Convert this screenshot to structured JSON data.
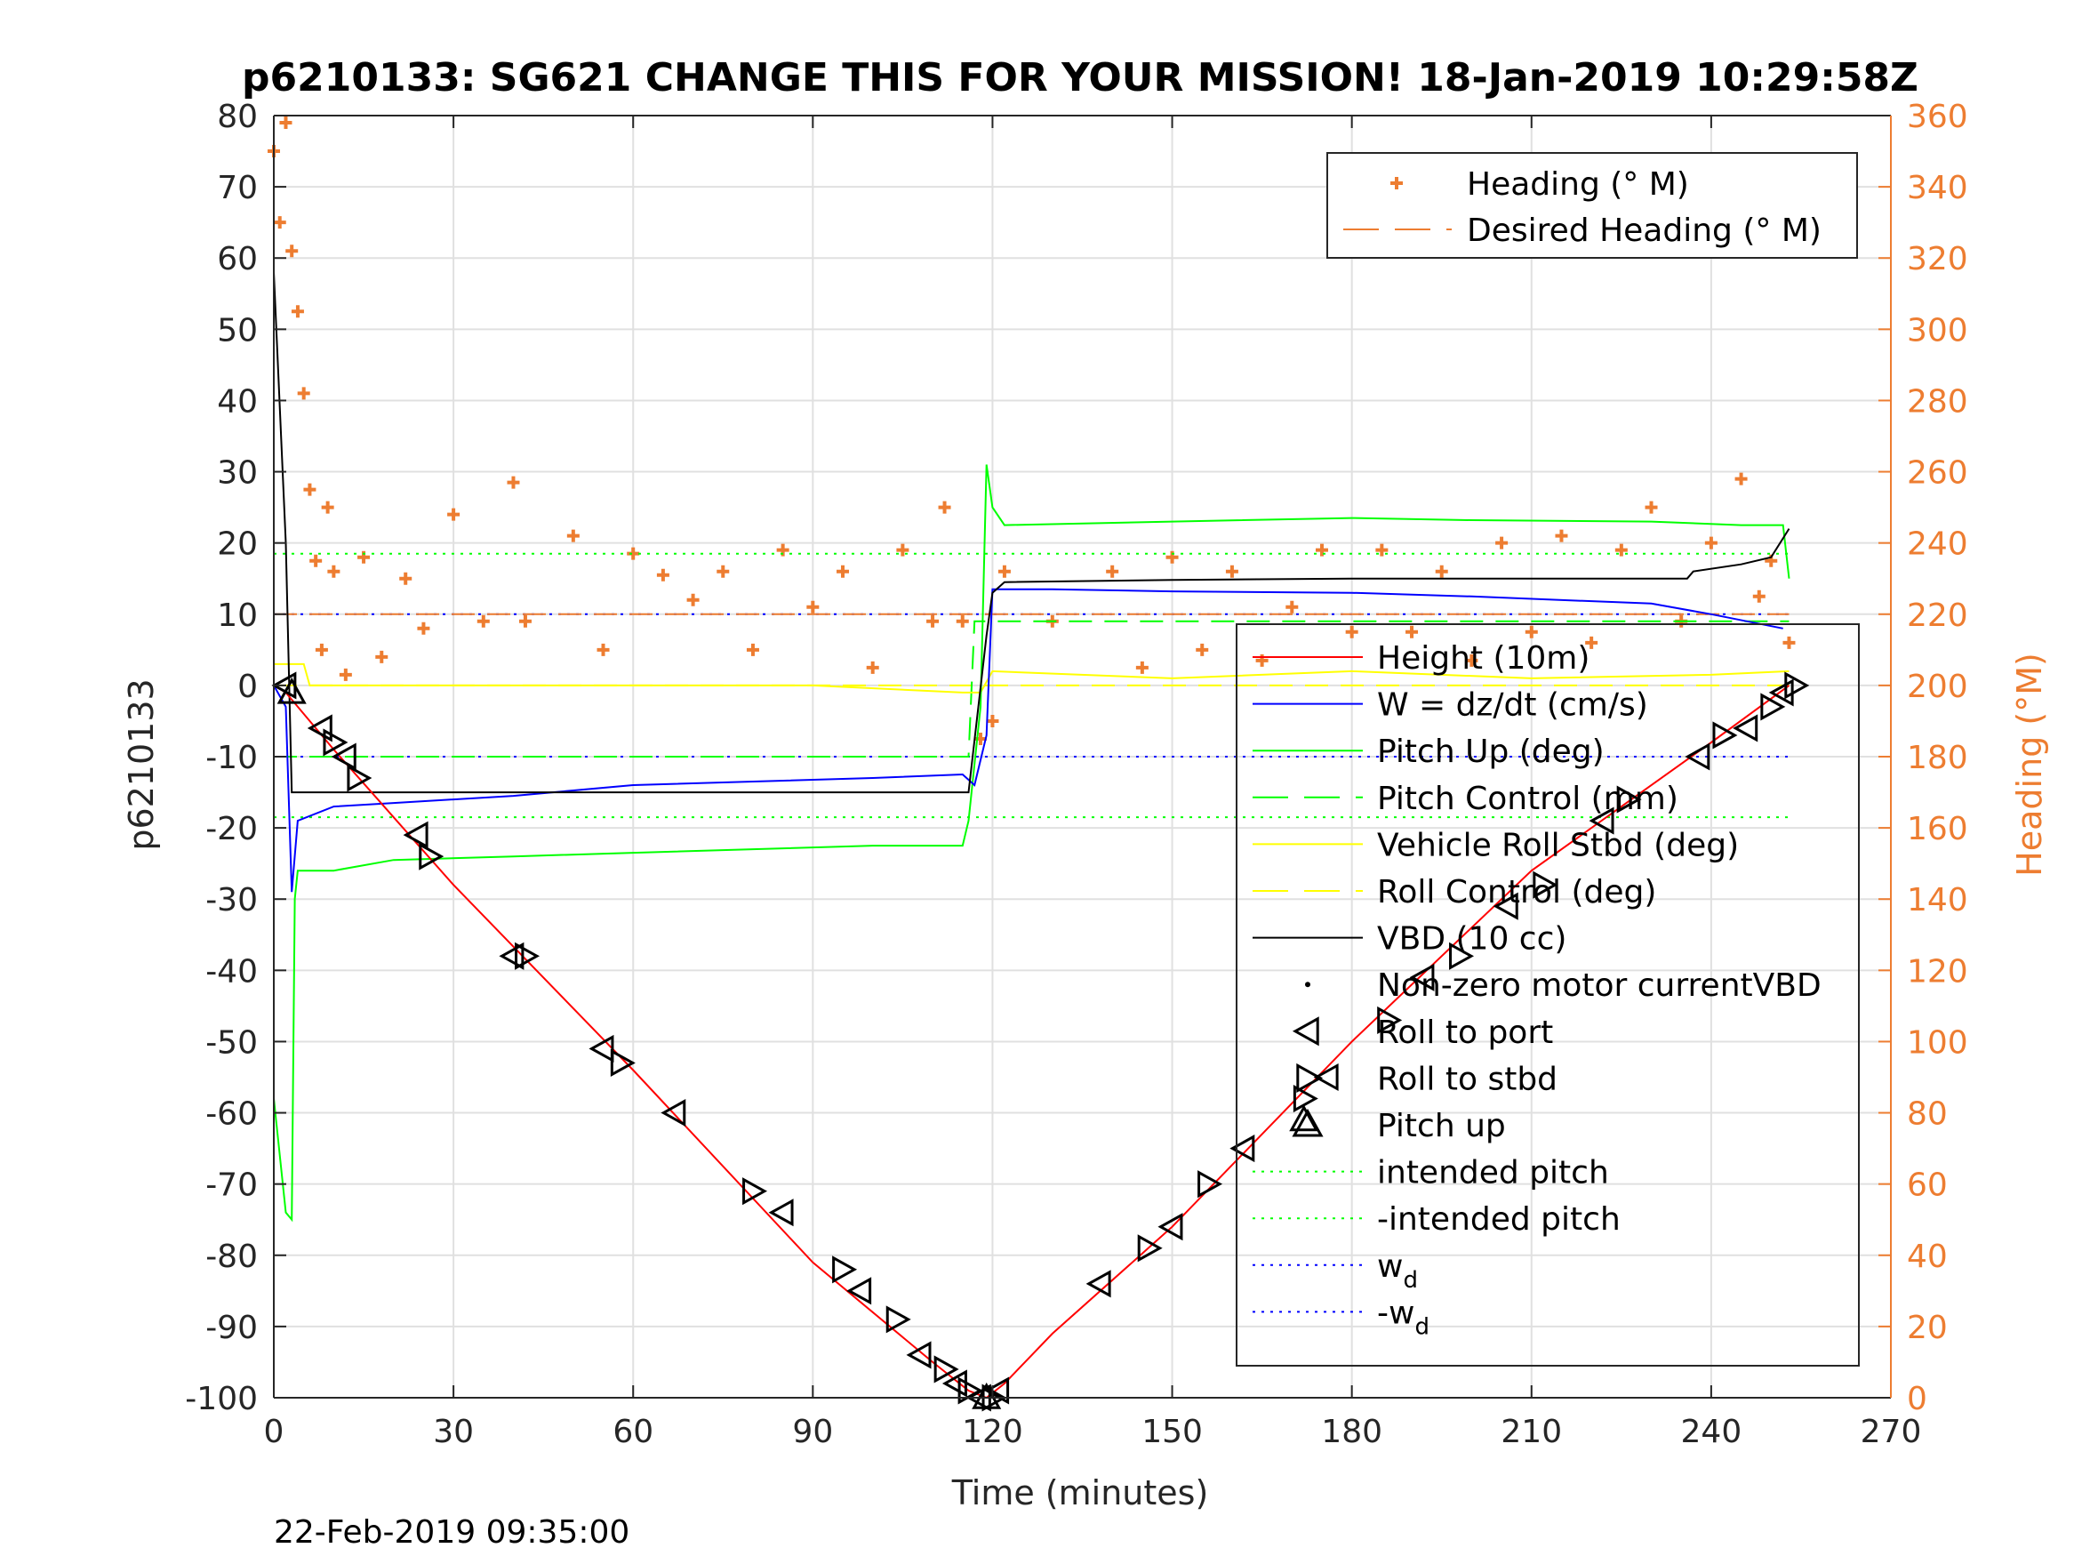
{
  "chart_data": {
    "type": "line",
    "title": "p6210133: SG621 CHANGE THIS FOR YOUR MISSION! 18-Jan-2019 10:29:58Z",
    "xlabel": "Time (minutes)",
    "ylabel": "p6210133",
    "y2label": "Heading (°M)",
    "timestamp": "22-Feb-2019 09:35:00",
    "xlim": [
      0,
      270
    ],
    "ylim": [
      -100,
      80
    ],
    "y2lim": [
      0,
      360
    ],
    "xticks": [
      "0",
      "30",
      "60",
      "90",
      "120",
      "150",
      "180",
      "210",
      "240",
      "270"
    ],
    "yticks": [
      "80",
      "70",
      "60",
      "50",
      "40",
      "30",
      "20",
      "10",
      "0",
      "-10",
      "-20",
      "-30",
      "-40",
      "-50",
      "-60",
      "-70",
      "-80",
      "-90",
      "-100"
    ],
    "y2ticks": [
      "360",
      "340",
      "320",
      "300",
      "280",
      "260",
      "240",
      "220",
      "200",
      "180",
      "160",
      "140",
      "120",
      "100",
      "80",
      "60",
      "40",
      "20",
      "0"
    ],
    "grid": true,
    "colors": {
      "heading": "#ED7D31",
      "height": "#FF0000",
      "w": "#0000FF",
      "pitch": "#00FF00",
      "roll": "#FFFF00",
      "vbd": "#000000",
      "axis": "#262626",
      "grid": "#E0E0E0"
    },
    "legend_heading": {
      "placement": "top-right",
      "entries": [
        "Heading (° M)",
        "Desired Heading (° M)"
      ]
    },
    "legend_main": {
      "placement": "lower-right",
      "entries": [
        {
          "label": "Height (10m)",
          "style": "line",
          "color": "#FF0000"
        },
        {
          "label": "W = dz/dt (cm/s)",
          "style": "line",
          "color": "#0000FF"
        },
        {
          "label": "Pitch Up (deg)",
          "style": "line",
          "color": "#00FF00"
        },
        {
          "label": "Pitch Control (mm)",
          "style": "dash",
          "color": "#00FF00"
        },
        {
          "label": "Vehicle Roll Stbd (deg)",
          "style": "line",
          "color": "#FFFF00"
        },
        {
          "label": "Roll Control (deg)",
          "style": "dash",
          "color": "#FFFF00"
        },
        {
          "label": "VBD (10 cc)",
          "style": "line",
          "color": "#000000"
        },
        {
          "label": "Non-zero motor currentVBD",
          "style": "dot",
          "color": "#000000"
        },
        {
          "label": "Roll to port",
          "style": "tri-left",
          "color": "#000000"
        },
        {
          "label": "Roll to stbd",
          "style": "tri-right",
          "color": "#000000"
        },
        {
          "label": "Pitch up",
          "style": "tri-up",
          "color": "#000000"
        },
        {
          "label": "intended pitch",
          "style": "dotted",
          "color": "#00FF00"
        },
        {
          "label": "-intended pitch",
          "style": "dotted",
          "color": "#00FF00"
        },
        {
          "label": "w",
          "sub": "d",
          "style": "dotted",
          "color": "#0000FF"
        },
        {
          "label": "-w",
          "sub": "d",
          "style": "dotted",
          "color": "#0000FF"
        }
      ]
    },
    "series": [
      {
        "name": "Height (10m)",
        "points": [
          [
            0,
            0
          ],
          [
            2,
            -1
          ],
          [
            10,
            -9
          ],
          [
            30,
            -28
          ],
          [
            60,
            -54
          ],
          [
            90,
            -81
          ],
          [
            110,
            -95
          ],
          [
            116,
            -99
          ],
          [
            119,
            -100
          ],
          [
            122,
            -98
          ],
          [
            130,
            -91
          ],
          [
            150,
            -76
          ],
          [
            180,
            -50
          ],
          [
            210,
            -26
          ],
          [
            240,
            -8
          ],
          [
            253,
            0
          ]
        ]
      },
      {
        "name": "W = dz/dt (cm/s)",
        "points": [
          [
            0,
            0
          ],
          [
            2,
            -3
          ],
          [
            3,
            -29
          ],
          [
            4,
            -19
          ],
          [
            10,
            -17
          ],
          [
            20,
            -16.5
          ],
          [
            40,
            -15.5
          ],
          [
            60,
            -14
          ],
          [
            80,
            -13.5
          ],
          [
            100,
            -13
          ],
          [
            115,
            -12.5
          ],
          [
            117,
            -14
          ],
          [
            119,
            -7
          ],
          [
            120,
            13.5
          ],
          [
            130,
            13.5
          ],
          [
            150,
            13.2
          ],
          [
            180,
            13
          ],
          [
            200,
            12.5
          ],
          [
            230,
            11.5
          ],
          [
            240,
            10
          ],
          [
            252,
            8
          ]
        ]
      },
      {
        "name": "Pitch Up (deg)",
        "points": [
          [
            0,
            -58
          ],
          [
            2,
            -74
          ],
          [
            3,
            -75
          ],
          [
            3.5,
            -30
          ],
          [
            4,
            -26
          ],
          [
            10,
            -26
          ],
          [
            20,
            -24.5
          ],
          [
            40,
            -24
          ],
          [
            60,
            -23.5
          ],
          [
            80,
            -23
          ],
          [
            100,
            -22.5
          ],
          [
            115,
            -22.5
          ],
          [
            116,
            -19
          ],
          [
            118,
            -3
          ],
          [
            119,
            31
          ],
          [
            120,
            25
          ],
          [
            122,
            22.5
          ],
          [
            150,
            23
          ],
          [
            180,
            23.5
          ],
          [
            200,
            23.2
          ],
          [
            230,
            23
          ],
          [
            245,
            22.5
          ],
          [
            252,
            22.5
          ],
          [
            253,
            15
          ]
        ]
      },
      {
        "name": "Pitch Control (mm)",
        "points": [
          [
            0,
            -10
          ],
          [
            116,
            -10
          ],
          [
            117,
            9
          ],
          [
            253,
            9
          ]
        ]
      },
      {
        "name": "Vehicle Roll Stbd (deg)",
        "points": [
          [
            0,
            3
          ],
          [
            5,
            3
          ],
          [
            6,
            0
          ],
          [
            60,
            0
          ],
          [
            90,
            0
          ],
          [
            115,
            -1
          ],
          [
            118,
            -1
          ],
          [
            120,
            2
          ],
          [
            150,
            1
          ],
          [
            180,
            2
          ],
          [
            210,
            1
          ],
          [
            240,
            1.5
          ],
          [
            253,
            2
          ]
        ]
      },
      {
        "name": "Roll Control (deg)",
        "points": [
          [
            0,
            0
          ],
          [
            253,
            0
          ]
        ]
      },
      {
        "name": "VBD (10 cc)",
        "points": [
          [
            0,
            58
          ],
          [
            2,
            20
          ],
          [
            3,
            -15
          ],
          [
            116,
            -15
          ],
          [
            119,
            7
          ],
          [
            120,
            13
          ],
          [
            122,
            14.5
          ],
          [
            150,
            14.8
          ],
          [
            180,
            15
          ],
          [
            210,
            15
          ],
          [
            236,
            15
          ],
          [
            237,
            16
          ],
          [
            245,
            17
          ],
          [
            250,
            18
          ],
          [
            253,
            22
          ]
        ]
      },
      {
        "name": "Heading (° M)",
        "axis": "right",
        "points": [
          [
            0,
            350
          ],
          [
            1,
            330
          ],
          [
            2,
            358
          ],
          [
            3,
            322
          ],
          [
            4,
            305
          ],
          [
            5,
            282
          ],
          [
            6,
            255
          ],
          [
            7,
            235
          ],
          [
            8,
            210
          ],
          [
            9,
            250
          ],
          [
            10,
            232
          ],
          [
            12,
            203
          ],
          [
            15,
            236
          ],
          [
            18,
            208
          ],
          [
            22,
            230
          ],
          [
            25,
            216
          ],
          [
            30,
            248
          ],
          [
            35,
            218
          ],
          [
            40,
            257
          ],
          [
            42,
            218
          ],
          [
            50,
            242
          ],
          [
            55,
            210
          ],
          [
            60,
            237
          ],
          [
            65,
            231
          ],
          [
            70,
            224
          ],
          [
            75,
            232
          ],
          [
            80,
            210
          ],
          [
            85,
            238
          ],
          [
            90,
            222
          ],
          [
            95,
            232
          ],
          [
            100,
            205
          ],
          [
            105,
            238
          ],
          [
            110,
            218
          ],
          [
            112,
            250
          ],
          [
            115,
            218
          ],
          [
            118,
            185
          ],
          [
            120,
            190
          ],
          [
            122,
            232
          ],
          [
            130,
            218
          ],
          [
            140,
            232
          ],
          [
            145,
            205
          ],
          [
            150,
            236
          ],
          [
            155,
            210
          ],
          [
            160,
            232
          ],
          [
            165,
            207
          ],
          [
            170,
            222
          ],
          [
            175,
            238
          ],
          [
            180,
            215
          ],
          [
            185,
            238
          ],
          [
            190,
            215
          ],
          [
            195,
            232
          ],
          [
            200,
            207
          ],
          [
            205,
            240
          ],
          [
            210,
            215
          ],
          [
            215,
            242
          ],
          [
            220,
            212
          ],
          [
            225,
            238
          ],
          [
            230,
            250
          ],
          [
            235,
            218
          ],
          [
            240,
            240
          ],
          [
            245,
            258
          ],
          [
            248,
            225
          ],
          [
            250,
            235
          ],
          [
            253,
            212
          ]
        ]
      },
      {
        "name": "Desired Heading (° M)",
        "axis": "right",
        "points": [
          [
            0,
            220
          ],
          [
            253,
            220
          ]
        ]
      },
      {
        "name": "intended pitch",
        "points": [
          [
            0,
            18.5
          ],
          [
            253,
            18.5
          ]
        ]
      },
      {
        "name": "-intended pitch",
        "points": [
          [
            0,
            -18.5
          ],
          [
            253,
            -18.5
          ]
        ]
      },
      {
        "name": "w_d",
        "points": [
          [
            0,
            10
          ],
          [
            253,
            10
          ]
        ]
      },
      {
        "name": "-w_d",
        "points": [
          [
            0,
            -10
          ],
          [
            253,
            -10
          ]
        ]
      }
    ],
    "markers": {
      "roll_port": [
        [
          2,
          0
        ],
        [
          8,
          -6
        ],
        [
          12,
          -10
        ],
        [
          24,
          -21
        ],
        [
          40,
          -38
        ],
        [
          55,
          -51
        ],
        [
          67,
          -60
        ],
        [
          85,
          -74
        ],
        [
          98,
          -85
        ],
        [
          108,
          -94
        ],
        [
          114,
          -98
        ],
        [
          118,
          -100
        ],
        [
          121,
          -99
        ],
        [
          138,
          -84
        ],
        [
          150,
          -76
        ],
        [
          162,
          -65
        ],
        [
          176,
          -55
        ],
        [
          192,
          -41
        ],
        [
          206,
          -31
        ],
        [
          222,
          -19
        ],
        [
          238,
          -10
        ],
        [
          246,
          -6
        ],
        [
          252,
          -1
        ]
      ],
      "roll_stbd": [
        [
          10,
          -8
        ],
        [
          14,
          -13
        ],
        [
          26,
          -24
        ],
        [
          42,
          -38
        ],
        [
          58,
          -53
        ],
        [
          80,
          -71
        ],
        [
          95,
          -82
        ],
        [
          104,
          -89
        ],
        [
          112,
          -96
        ],
        [
          116,
          -99
        ],
        [
          120,
          -100
        ],
        [
          146,
          -79
        ],
        [
          156,
          -70
        ],
        [
          172,
          -58
        ],
        [
          186,
          -47
        ],
        [
          198,
          -38
        ],
        [
          212,
          -28
        ],
        [
          226,
          -16
        ],
        [
          242,
          -7
        ],
        [
          250,
          -3
        ],
        [
          254,
          0
        ]
      ],
      "pitch_up": [
        [
          3,
          -1
        ],
        [
          119,
          -100
        ],
        [
          172,
          -61
        ]
      ]
    }
  }
}
